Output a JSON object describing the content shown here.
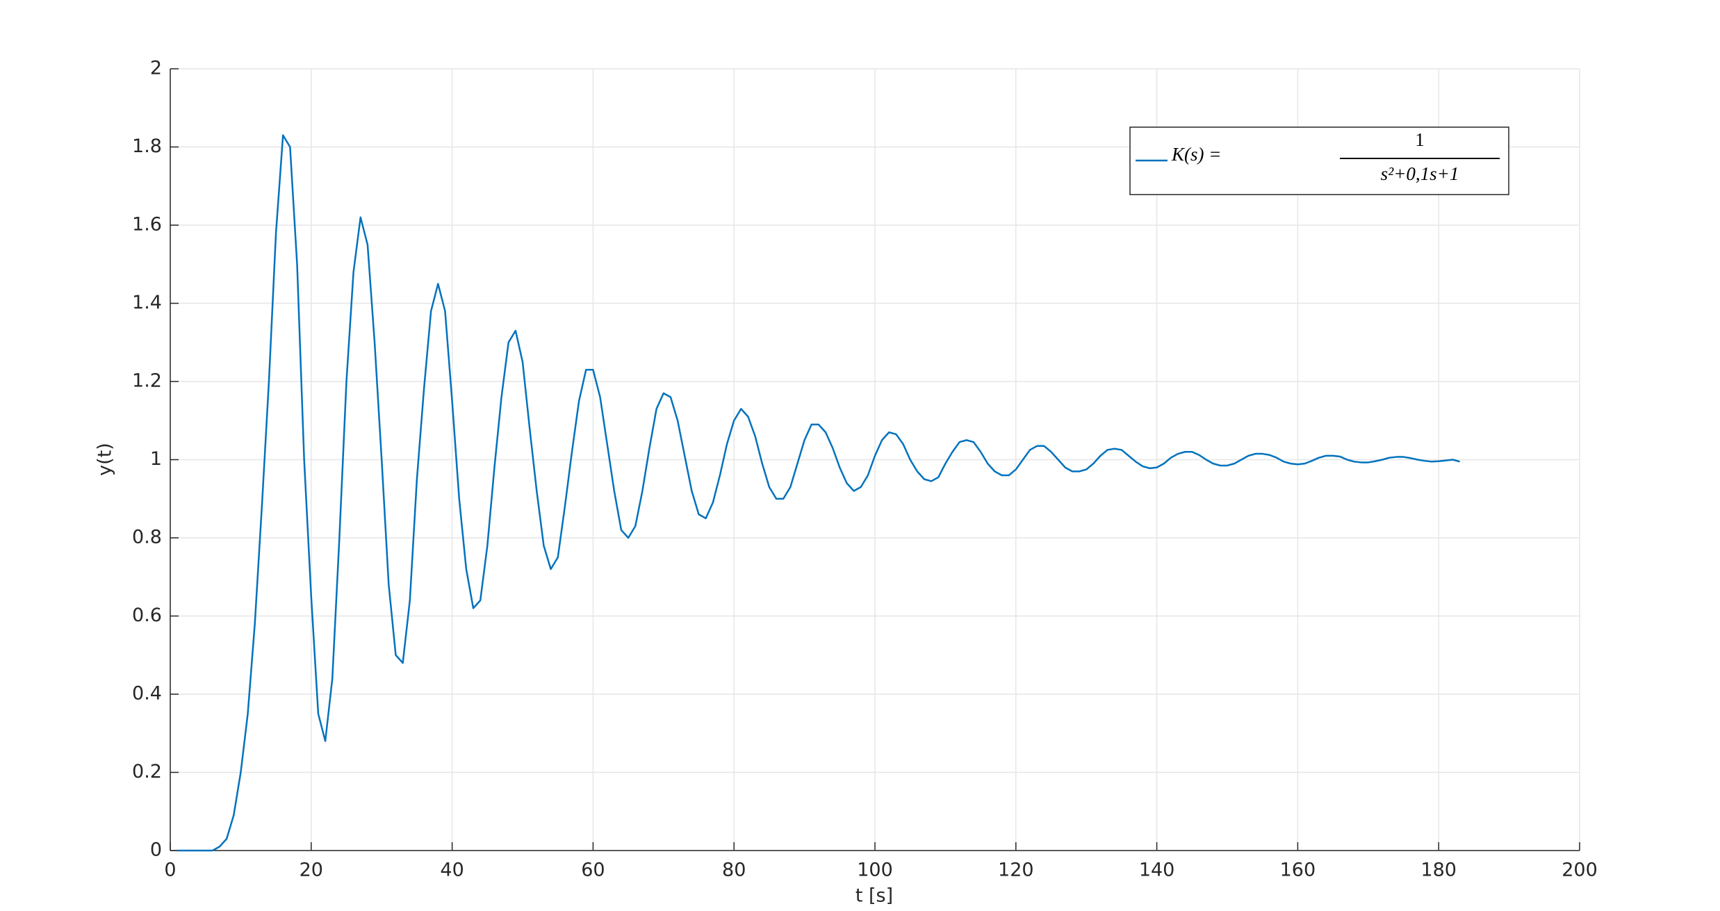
{
  "chart_data": {
    "type": "line",
    "x_label": "t [s]",
    "y_label": "y(t)",
    "xlim": [
      0,
      200
    ],
    "xticks": [
      0,
      20,
      40,
      60,
      80,
      100,
      120,
      140,
      160,
      180,
      200
    ],
    "ylim": [
      0,
      2
    ],
    "yticks": [
      0,
      0.2,
      0.4,
      0.6,
      0.8,
      1,
      1.2,
      1.4,
      1.6,
      1.8,
      2
    ],
    "grid": true,
    "legend_position": "upper right",
    "series": [
      {
        "name": "K(s) =",
        "name_numerator": "1",
        "name_denominator": "s²+0,1s+1",
        "color": "#0072bd",
        "x": [
          1,
          2,
          3,
          4,
          5,
          6,
          7,
          8,
          9,
          10,
          11,
          12,
          13,
          14,
          15,
          16,
          17,
          18,
          19,
          20,
          21,
          22,
          23,
          24,
          25,
          26,
          27,
          28,
          29,
          30,
          31,
          32,
          33,
          34,
          35,
          36,
          37,
          38,
          39,
          40,
          41,
          42,
          43,
          44,
          45,
          46,
          47,
          48,
          49,
          50,
          51,
          52,
          53,
          54,
          55,
          56,
          57,
          58,
          59,
          60,
          61,
          62,
          63,
          64,
          65,
          66,
          67,
          68,
          69,
          70,
          71,
          72,
          73,
          74,
          75,
          76,
          77,
          78,
          79,
          80,
          81,
          82,
          83,
          84,
          85,
          86,
          87,
          88,
          89,
          90,
          91,
          92,
          93,
          94,
          95,
          96,
          97,
          98,
          99,
          100,
          101,
          102,
          103,
          104,
          105,
          106,
          107,
          108,
          109,
          110,
          111,
          112,
          113,
          114,
          115,
          116,
          117,
          118,
          119,
          120,
          121,
          122,
          123,
          124,
          125,
          126,
          127,
          128,
          129,
          130,
          131,
          132,
          133,
          134,
          135,
          136,
          137,
          138,
          139,
          140,
          141,
          142,
          143,
          144,
          145,
          146,
          147,
          148,
          149,
          150,
          151,
          152,
          153,
          154,
          155,
          156,
          157,
          158,
          159,
          160,
          161,
          162,
          163,
          164,
          165,
          166,
          167,
          168,
          169,
          170,
          171,
          172,
          173,
          174,
          175,
          176,
          177,
          178,
          179,
          180,
          181,
          182,
          183
        ],
        "values": [
          0,
          0,
          0,
          0,
          0,
          0,
          0.01,
          0.03,
          0.09,
          0.2,
          0.35,
          0.58,
          0.88,
          1.2,
          1.58,
          1.83,
          1.8,
          1.5,
          1.0,
          0.65,
          0.35,
          0.28,
          0.44,
          0.8,
          1.2,
          1.48,
          1.62,
          1.55,
          1.3,
          1.0,
          0.68,
          0.5,
          0.48,
          0.64,
          0.95,
          1.18,
          1.38,
          1.45,
          1.38,
          1.15,
          0.9,
          0.72,
          0.62,
          0.64,
          0.78,
          0.98,
          1.16,
          1.3,
          1.33,
          1.25,
          1.08,
          0.92,
          0.78,
          0.72,
          0.75,
          0.88,
          1.02,
          1.15,
          1.23,
          1.23,
          1.16,
          1.04,
          0.92,
          0.82,
          0.8,
          0.83,
          0.92,
          1.03,
          1.13,
          1.17,
          1.16,
          1.1,
          1.01,
          0.92,
          0.86,
          0.85,
          0.89,
          0.96,
          1.04,
          1.1,
          1.13,
          1.11,
          1.06,
          0.99,
          0.93,
          0.9,
          0.9,
          0.93,
          0.99,
          1.05,
          1.09,
          1.09,
          1.07,
          1.03,
          0.98,
          0.94,
          0.92,
          0.93,
          0.96,
          1.01,
          1.05,
          1.07,
          1.065,
          1.04,
          1.0,
          0.97,
          0.95,
          0.945,
          0.955,
          0.99,
          1.02,
          1.045,
          1.05,
          1.045,
          1.02,
          0.99,
          0.97,
          0.96,
          0.96,
          0.975,
          1.0,
          1.025,
          1.035,
          1.035,
          1.02,
          1.0,
          0.98,
          0.97,
          0.97,
          0.975,
          0.99,
          1.01,
          1.025,
          1.028,
          1.025,
          1.01,
          0.995,
          0.983,
          0.978,
          0.98,
          0.99,
          1.005,
          1.015,
          1.02,
          1.02,
          1.012,
          1.0,
          0.99,
          0.985,
          0.985,
          0.99,
          1.0,
          1.01,
          1.015,
          1.015,
          1.012,
          1.005,
          0.995,
          0.99,
          0.988,
          0.99,
          0.997,
          1.005,
          1.01,
          1.01,
          1.008,
          1.0,
          0.995,
          0.993,
          0.993,
          0.996,
          1.0,
          1.005,
          1.007,
          1.007,
          1.004,
          1.0,
          0.997,
          0.995,
          0.996,
          0.998,
          1.0,
          0.995
        ]
      }
    ]
  }
}
